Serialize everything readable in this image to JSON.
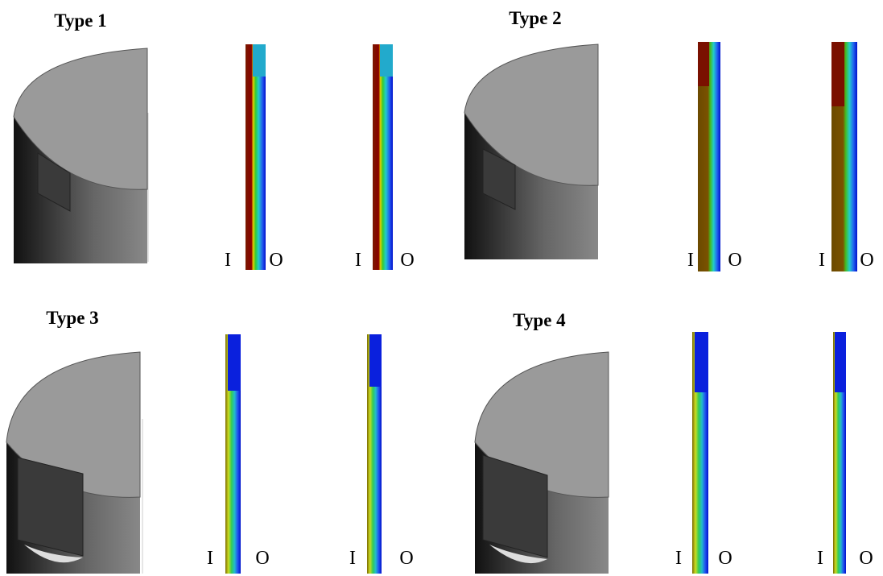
{
  "panels": [
    {
      "title": "Type 1",
      "strips": [
        {
          "inner": "I",
          "outer": "O"
        },
        {
          "inner": "I",
          "outer": "O"
        }
      ]
    },
    {
      "title": "Type 2",
      "strips": [
        {
          "inner": "I",
          "outer": "O"
        },
        {
          "inner": "I",
          "outer": "O"
        }
      ]
    },
    {
      "title": "Type 3",
      "strips": [
        {
          "inner": "I",
          "outer": "O"
        },
        {
          "inner": "I",
          "outer": "O"
        }
      ]
    },
    {
      "title": "Type 4",
      "strips": [
        {
          "inner": "I",
          "outer": "O"
        },
        {
          "inner": "I",
          "outer": "O"
        }
      ]
    }
  ]
}
